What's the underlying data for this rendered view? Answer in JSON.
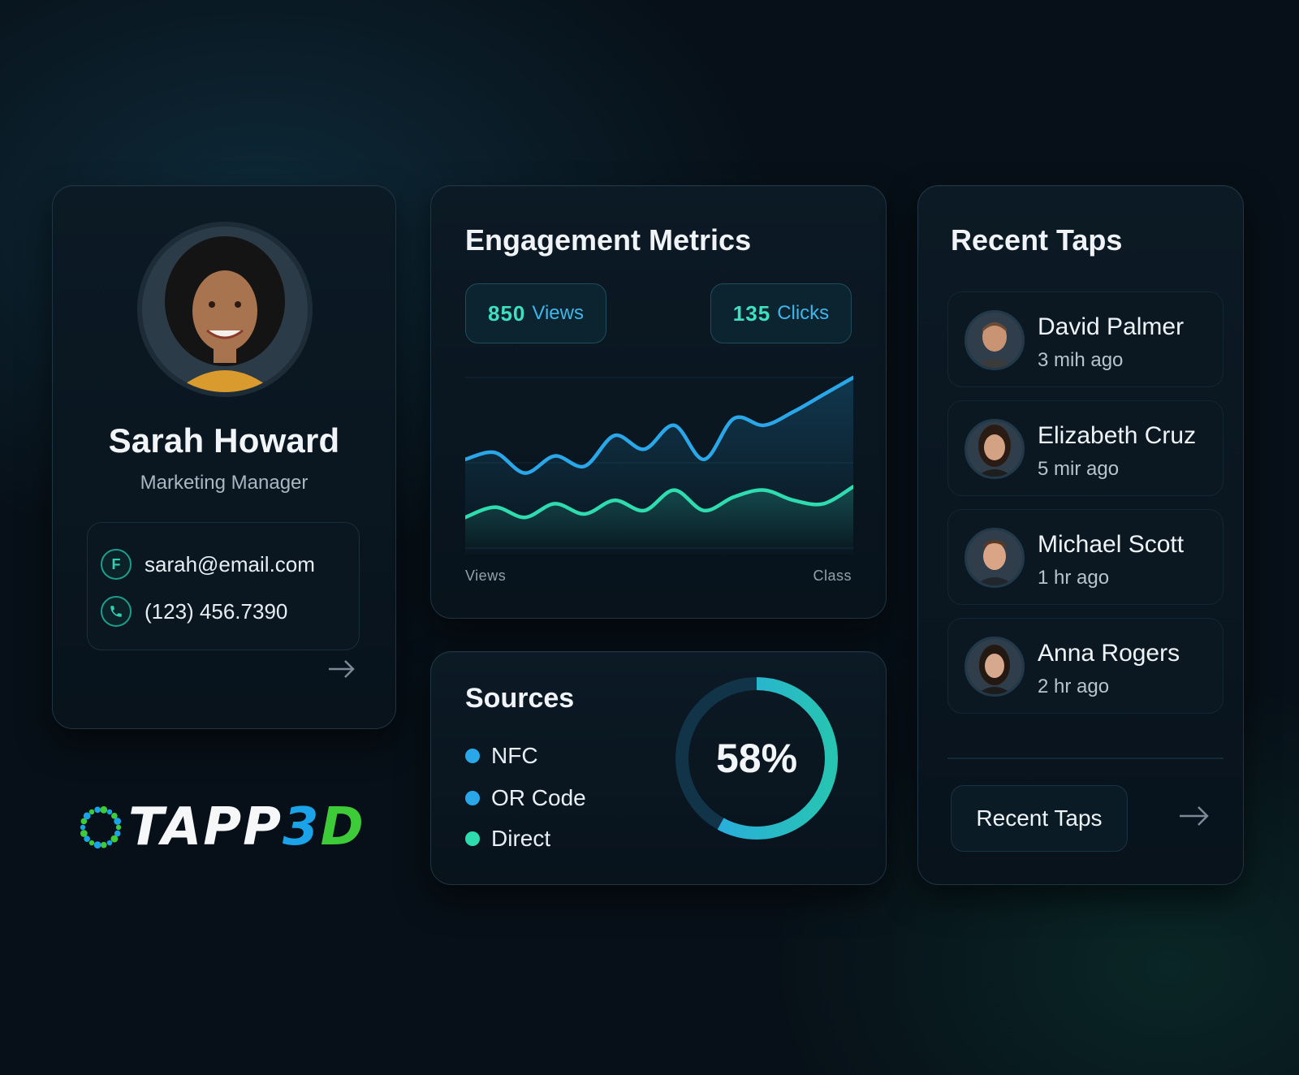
{
  "colors": {
    "accent_blue": "#2aa7e8",
    "accent_teal": "#2fdcb0",
    "background": "#071018"
  },
  "profile": {
    "name": "Sarah Howard",
    "role": "Marketing Manager",
    "email": "sarah@email.com",
    "phone": "(123) 456.7390",
    "email_icon": "email-icon",
    "phone_icon": "phone-icon",
    "arrow_icon": "arrow-right-icon"
  },
  "engagement": {
    "title": "Engagement Metrics",
    "views_count": "850",
    "views_label": "Views",
    "clicks_count": "135",
    "clicks_label": "Clicks",
    "x_label_left": "Views",
    "x_label_right": "Class"
  },
  "chart_data": {
    "type": "line",
    "title": "Engagement Metrics",
    "xlabel": "",
    "ylabel": "",
    "grid": true,
    "x": [
      0,
      1,
      2,
      3,
      4,
      5,
      6,
      7,
      8,
      9,
      10,
      11,
      12,
      13
    ],
    "ylim": [
      0,
      100
    ],
    "series": [
      {
        "name": "Views",
        "color": "#2aa7e8",
        "values": [
          52,
          56,
          44,
          54,
          48,
          66,
          58,
          72,
          52,
          76,
          72,
          80,
          90,
          100
        ]
      },
      {
        "name": "Clicks",
        "color": "#2fdcb0",
        "values": [
          18,
          24,
          18,
          26,
          20,
          28,
          22,
          34,
          22,
          30,
          34,
          28,
          26,
          36
        ]
      }
    ]
  },
  "sources": {
    "title": "Sources",
    "items": [
      {
        "label": "NFC",
        "color": "#2aa7e8"
      },
      {
        "label": "OR Code",
        "color": "#2aa7e8"
      },
      {
        "label": "Direct",
        "color": "#2fdcb0"
      }
    ],
    "percent_label": "58%",
    "percent_value": 58
  },
  "recent_taps": {
    "title": "Recent Taps",
    "items": [
      {
        "name": "David Palmer",
        "time": "3 mih ago"
      },
      {
        "name": "Elizabeth Cruz",
        "time": "5 mir ago"
      },
      {
        "name": "Michael Scott",
        "time": "1 hr ago"
      },
      {
        "name": "Anna Rogers",
        "time": "2 hr ago"
      }
    ],
    "button_label": "Recent Taps",
    "arrow_icon": "arrow-right-icon"
  },
  "logo": {
    "text_white": "TAPP",
    "text_blue": "3",
    "text_green": "D"
  }
}
